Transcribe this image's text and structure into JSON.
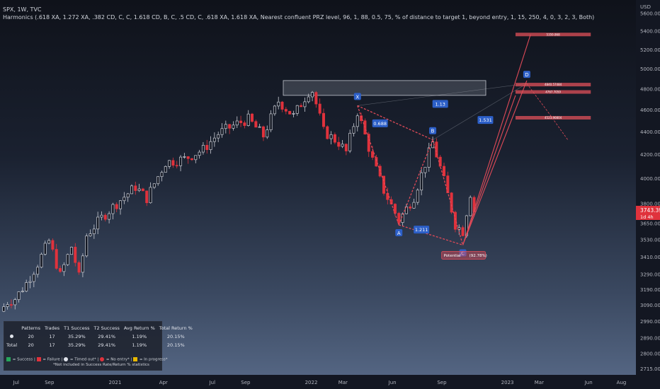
{
  "header": {
    "symbol": "SPX, 1W, TVC",
    "indicator": "Harmonics (.618 XA, 1.272 XA, .382 CD, C, C, 1.618 CD, B, C, .5 CD, C, .618 XA, 1.618 XA, Nearest confluent PRZ level, 96, 1, 88, 0.5, 75, % of distance to target 1, beyond entry, 1, 15, 250, 4, 0, 3, 2, 3, Both)"
  },
  "price_axis": {
    "currency": "USD",
    "current_price": "3743.39",
    "countdown": "1d 4h"
  },
  "chart_data": {
    "type": "candlestick",
    "title": "SPX, 1W, TVC",
    "ylabel": "USD",
    "yscale": "log",
    "ylim": [
      2680,
      5750
    ],
    "y_ticks": [
      2715,
      2800,
      2890,
      2990,
      3090,
      3190,
      3290,
      3410,
      3530,
      3650,
      3800,
      4000,
      4200,
      4400,
      4600,
      4800,
      5000,
      5200,
      5400,
      5600
    ],
    "x_ticks": [
      "Jul",
      "Sep",
      "2021",
      "Apr",
      "Jul",
      "Sep",
      "2022",
      "Mar",
      "Jun",
      "Sep",
      "2023",
      "Mar",
      "Jun",
      "Aug"
    ],
    "x_start": "2020-06-01",
    "x_end": "2023-08-28",
    "x_tick_dates": [
      "2020-07-01",
      "2020-09-01",
      "2021-01-01",
      "2021-04-01",
      "2021-07-01",
      "2021-09-01",
      "2022-01-01",
      "2022-03-01",
      "2022-06-01",
      "2022-09-01",
      "2023-01-01",
      "2023-03-01",
      "2023-06-01",
      "2023-08-01"
    ],
    "last_close": 3743.39,
    "anchors": [
      [
        "2020-06-01",
        3050
      ],
      [
        "2020-06-15",
        3110
      ],
      [
        "2020-06-29",
        3130
      ],
      [
        "2020-07-20",
        3230
      ],
      [
        "2020-08-10",
        3360
      ],
      [
        "2020-08-31",
        3520
      ],
      [
        "2020-09-21",
        3280
      ],
      [
        "2020-10-12",
        3480
      ],
      [
        "2020-10-26",
        3270
      ],
      [
        "2020-11-09",
        3560
      ],
      [
        "2020-12-07",
        3690
      ],
      [
        "2021-01-04",
        3800
      ],
      [
        "2021-02-08",
        3930
      ],
      [
        "2021-03-01",
        3840
      ],
      [
        "2021-04-05",
        4130
      ],
      [
        "2021-05-10",
        4160
      ],
      [
        "2021-06-14",
        4240
      ],
      [
        "2021-07-12",
        4380
      ],
      [
        "2021-08-16",
        4470
      ],
      [
        "2021-09-06",
        4510
      ],
      [
        "2021-10-04",
        4360
      ],
      [
        "2021-11-01",
        4680
      ],
      [
        "2021-11-29",
        4540
      ],
      [
        "2021-12-27",
        4770
      ],
      [
        "2022-01-03",
        4780
      ],
      [
        "2022-01-24",
        4400
      ],
      [
        "2022-02-21",
        4300
      ],
      [
        "2022-03-07",
        4220
      ],
      [
        "2022-03-28",
        4580
      ],
      [
        "2022-04-25",
        4150
      ],
      [
        "2022-05-16",
        3900
      ],
      [
        "2022-06-13",
        3670
      ],
      [
        "2022-07-11",
        3850
      ],
      [
        "2022-08-15",
        4300
      ],
      [
        "2022-09-05",
        3980
      ],
      [
        "2022-09-26",
        3640
      ],
      [
        "2022-10-10",
        3590
      ],
      [
        "2022-10-24",
        3880
      ],
      [
        "2022-10-31",
        3743
      ]
    ],
    "harmonic_pattern": {
      "points": [
        {
          "label": "X",
          "date": "2022-03-28",
          "price": 4637
        },
        {
          "label": "A",
          "date": "2022-06-13",
          "price": 3637
        },
        {
          "label": "B",
          "date": "2022-08-15",
          "price": 4325
        },
        {
          "label": "C",
          "date": "2022-10-10",
          "price": 3491
        },
        {
          "label": "D",
          "date": "2023-02-06",
          "price": 4850
        }
      ],
      "ratios": [
        {
          "text": "0.688",
          "date": "2022-05-09",
          "price": 4470
        },
        {
          "text": "1.211",
          "date": "2022-07-25",
          "price": 3600
        },
        {
          "text": "1.13",
          "date": "2022-08-29",
          "price": 4650
        },
        {
          "text": "1.531",
          "date": "2022-11-21",
          "price": 4500
        }
      ],
      "status": "Potential",
      "probability": "(92.78%)"
    },
    "prz_zone": {
      "from": 4735,
      "to": 4880
    },
    "targets": [
      {
        "label": "5359.868",
        "price": 5360
      },
      {
        "label": "4840.57484",
        "price": 4840
      },
      {
        "label": "4767.7059",
        "price": 4768
      },
      {
        "label": "4523.90804",
        "price": 4524
      }
    ]
  },
  "stats_table": {
    "headers": [
      "",
      "Patterns",
      "Trades",
      "T1 Success",
      "T2 Success",
      "Avg Return %",
      "Total Return %"
    ],
    "rows": [
      [
        "",
        "20",
        "17",
        "35.29%",
        "29.41%",
        "1.19%",
        "20.15%"
      ],
      [
        "Total",
        "20",
        "17",
        "35.29%",
        "29.41%",
        "1.19%",
        "20.15%"
      ]
    ],
    "legend": [
      " = Success |",
      " = Failure |",
      " = Timed out* |",
      " = No entry* |",
      " = In progress*"
    ],
    "note": "*Not included in Success Rate/Return % statistics"
  },
  "colors": {
    "up": "#c9ccd4",
    "down": "#e0323c",
    "pattern": "#e04a58",
    "label_bg": "#2c5fc8",
    "target": "#e0505a",
    "price_tag": "#e0323c"
  }
}
